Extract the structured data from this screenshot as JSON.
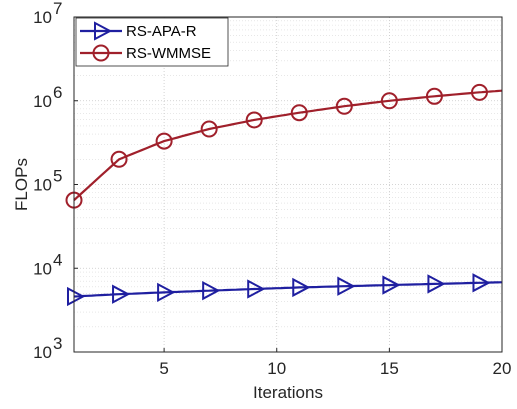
{
  "chart_data": {
    "type": "line",
    "title": "",
    "xlabel": "Iterations",
    "ylabel": "FLOPs",
    "xlim": [
      1,
      20
    ],
    "ylim": [
      1000,
      10000000
    ],
    "yscale": "log",
    "grid": true,
    "legend_position": "top-left",
    "x_ticks": [
      5,
      10,
      15,
      20
    ],
    "x_tick_labels": [
      "5",
      "10",
      "15",
      "20"
    ],
    "y_ticks": [
      1000,
      10000,
      100000,
      1000000,
      10000000
    ],
    "y_tick_labels": [
      {
        "base": "10",
        "exp": "3"
      },
      {
        "base": "10",
        "exp": "4"
      },
      {
        "base": "10",
        "exp": "5"
      },
      {
        "base": "10",
        "exp": "6"
      },
      {
        "base": "10",
        "exp": "7"
      }
    ],
    "series": [
      {
        "name": "RS-APA-R",
        "color": "#1f1fa0",
        "marker": "triangle-right",
        "x": [
          1,
          3,
          5,
          7,
          9,
          11,
          13,
          15,
          17,
          19
        ],
        "values": [
          4600,
          4900,
          5150,
          5400,
          5650,
          5900,
          6100,
          6300,
          6500,
          6700
        ],
        "end_x": 20,
        "end_value": 6800
      },
      {
        "name": "RS-WMMSE",
        "color": "#a0202b",
        "marker": "circle",
        "x": [
          1,
          3,
          5,
          7,
          9,
          11,
          13,
          15,
          17,
          19
        ],
        "values": [
          65000,
          200000,
          330000,
          460000,
          590000,
          720000,
          860000,
          1000000,
          1130000,
          1260000
        ],
        "end_x": 20,
        "end_value": 1320000
      }
    ]
  }
}
